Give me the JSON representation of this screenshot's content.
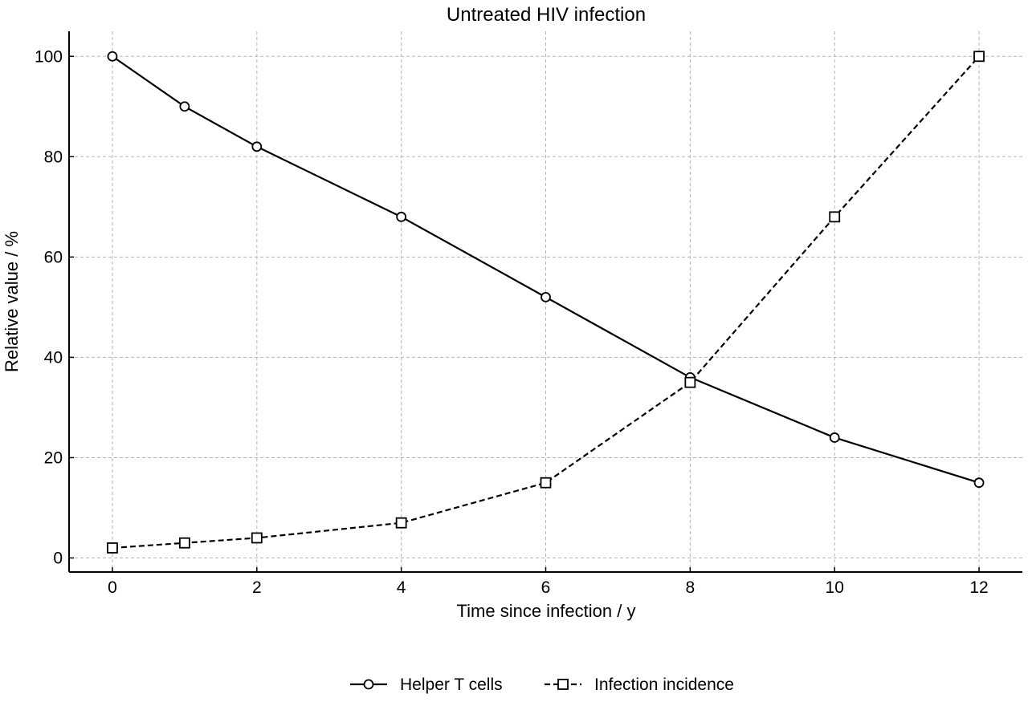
{
  "chart_data": {
    "type": "line",
    "title": "Untreated HIV infection",
    "xlabel": "Time since infection / y",
    "ylabel": "Relative value / %",
    "xlim": [
      -0.6,
      12.6
    ],
    "ylim": [
      -2.8,
      105
    ],
    "xticks": [
      0,
      2,
      4,
      6,
      8,
      10,
      12
    ],
    "yticks": [
      0,
      20,
      40,
      60,
      80,
      100
    ],
    "grid": true,
    "legend": "bottom-center",
    "series": [
      {
        "name": "Helper T cells",
        "x": [
          0,
          1,
          2,
          4,
          6,
          8,
          10,
          12
        ],
        "y": [
          100,
          90,
          82,
          68,
          52,
          36,
          24,
          15
        ],
        "line_style": "solid",
        "marker": "circle",
        "color": "#000000"
      },
      {
        "name": "Infection incidence",
        "x": [
          0,
          1,
          2,
          4,
          6,
          8,
          10,
          12
        ],
        "y": [
          2,
          3,
          4,
          7,
          15,
          35,
          68,
          100
        ],
        "line_style": "dashed",
        "marker": "square",
        "color": "#000000"
      }
    ]
  }
}
